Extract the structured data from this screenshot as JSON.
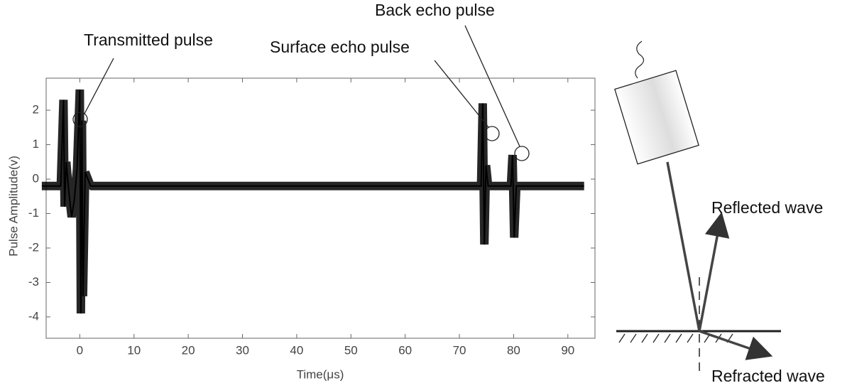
{
  "chart_data": {
    "type": "line",
    "x_label": "Time(μs)",
    "y_label": "Pulse Amplitude(v)",
    "x": [
      -7,
      -3.5,
      -3,
      -2.8,
      -2.5,
      -2,
      -1.5,
      -1,
      -0.5,
      0,
      0.2,
      0.4,
      0.6,
      1,
      2,
      74,
      74.3,
      74.6,
      74.9,
      75.3,
      79.5,
      79.8,
      80.1,
      80.5,
      93
    ],
    "series": [
      {
        "color": "#000000",
        "values": [
          -0.2,
          -0.2,
          2.3,
          -0.8,
          0.5,
          -0.4,
          -1.1,
          -0.6,
          0.3,
          2.6,
          -3.9,
          1.7,
          -3.4,
          0.2,
          -0.2,
          -0.2,
          2.2,
          -1.9,
          0.4,
          -0.2,
          -0.2,
          0.7,
          -1.7,
          -0.2,
          -0.2
        ]
      }
    ],
    "xlim": [
      -6.2,
      95
    ],
    "ylim": [
      -4.62,
      2.93
    ],
    "xticks": [
      0,
      10,
      20,
      30,
      40,
      50,
      60,
      70,
      80,
      90
    ],
    "yticks": [
      -4,
      -3,
      -2,
      -1,
      0,
      1,
      2
    ],
    "annotations": [
      "Transmitted pulse",
      "Surface echo pulse",
      "Back echo pulse"
    ]
  },
  "diagram": {
    "labels": [
      "Reflected wave",
      "Refracted wave"
    ]
  }
}
